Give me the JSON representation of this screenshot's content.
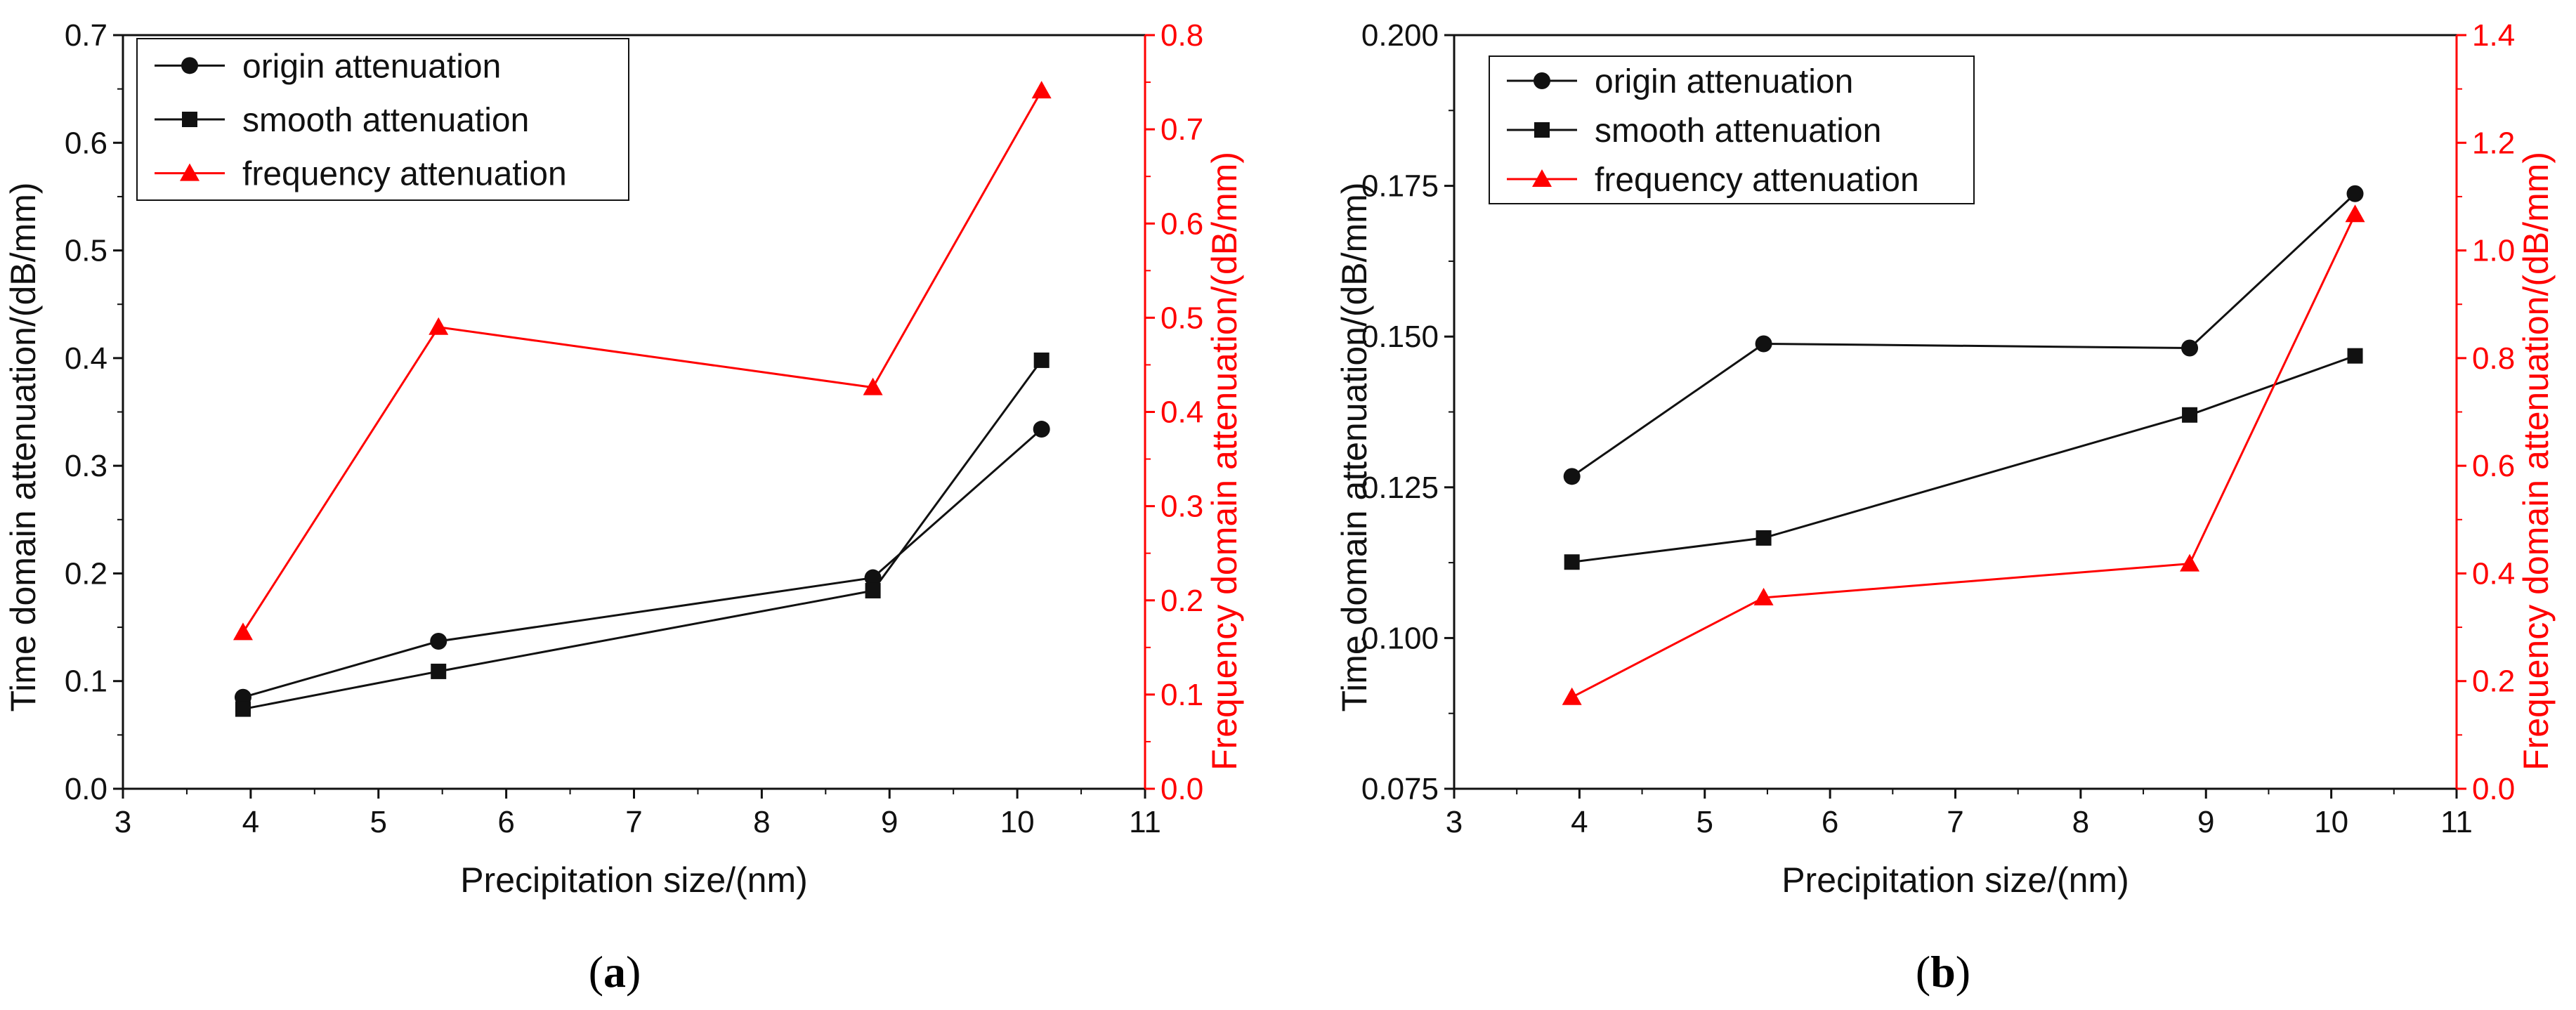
{
  "colors": {
    "black": "#111111",
    "red": "#ff0000"
  },
  "chart_data": [
    {
      "id": "a",
      "type": "line",
      "caption_open": "(",
      "caption_letter": "a",
      "caption_close": ")",
      "xlabel": "Precipitation size/(nm)",
      "ylabel": "Time domain attenuation/(dB/mm)",
      "y2label": "Frequency domain attenuation/(dB/mm)",
      "xlim": [
        3,
        11
      ],
      "ylim": [
        0,
        0.7
      ],
      "y2lim": [
        0,
        0.8
      ],
      "xticks": [
        "3",
        "4",
        "5",
        "6",
        "7",
        "8",
        "9",
        "10",
        "11"
      ],
      "yticks": [
        "0.0",
        "0.1",
        "0.2",
        "0.3",
        "0.4",
        "0.5",
        "0.6",
        "0.7"
      ],
      "y2ticks": [
        "0.0",
        "0.1",
        "0.2",
        "0.3",
        "0.4",
        "0.5",
        "0.6",
        "0.7",
        "0.8"
      ],
      "legend_position": "top-left",
      "series": [
        {
          "name": "origin attenuation",
          "axis": "left",
          "color": "#111111",
          "marker": "circle",
          "x": [
            3.94,
            5.47,
            8.87,
            10.19
          ],
          "y": [
            0.085,
            0.137,
            0.196,
            0.334
          ]
        },
        {
          "name": "smooth attenuation",
          "axis": "left",
          "color": "#111111",
          "marker": "square",
          "x": [
            3.94,
            5.47,
            8.87,
            10.19
          ],
          "y": [
            0.074,
            0.109,
            0.184,
            0.398
          ]
        },
        {
          "name": "frequency attenuation",
          "axis": "right",
          "color": "#ff0000",
          "marker": "triangle",
          "x": [
            3.94,
            5.47,
            8.87,
            10.19
          ],
          "y": [
            0.166,
            0.49,
            0.426,
            0.741
          ]
        }
      ]
    },
    {
      "id": "b",
      "type": "line",
      "caption_open": "(",
      "caption_letter": "b",
      "caption_close": ")",
      "xlabel": "Precipitation size/(nm)",
      "ylabel": "Time domain attenuation/(dB/mm)",
      "y2label": "Frequency domain attenuation/(dB/mm)",
      "xlim": [
        3,
        11
      ],
      "ylim": [
        0.075,
        0.2
      ],
      "y2lim": [
        0,
        1.4
      ],
      "xticks": [
        "3",
        "4",
        "5",
        "6",
        "7",
        "8",
        "9",
        "10",
        "11"
      ],
      "yticks": [
        "0.075",
        "0.100",
        "0.125",
        "0.150",
        "0.175",
        "0.200"
      ],
      "y2ticks": [
        "0.0",
        "0.2",
        "0.4",
        "0.6",
        "0.8",
        "1.0",
        "1.2",
        "1.4"
      ],
      "legend_position": "top-left",
      "series": [
        {
          "name": "origin attenuation",
          "axis": "left",
          "color": "#111111",
          "marker": "circle",
          "x": [
            3.94,
            5.47,
            8.87,
            10.19
          ],
          "y": [
            0.1268,
            0.1488,
            0.1481,
            0.1737
          ]
        },
        {
          "name": "smooth attenuation",
          "axis": "left",
          "color": "#111111",
          "marker": "square",
          "x": [
            3.94,
            5.47,
            8.87,
            10.19
          ],
          "y": [
            0.1126,
            0.1166,
            0.137,
            0.1468
          ]
        },
        {
          "name": "frequency attenuation",
          "axis": "right",
          "color": "#ff0000",
          "marker": "triangle",
          "x": [
            3.94,
            5.47,
            8.87,
            10.19
          ],
          "y": [
            0.17,
            0.355,
            0.418,
            1.067
          ]
        }
      ]
    }
  ]
}
